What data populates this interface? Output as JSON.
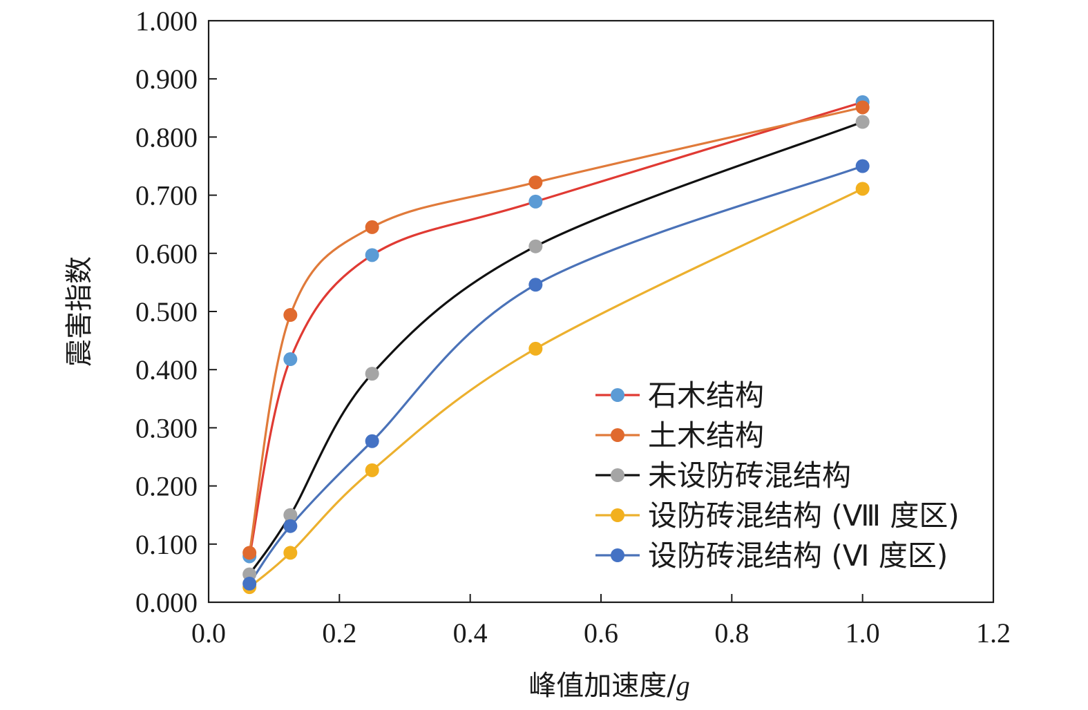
{
  "chart_data": {
    "type": "line",
    "title": "",
    "xlabel": "峰值加速度/",
    "xlabel_italic": "g",
    "ylabel": "震害指数",
    "xlim": [
      0.0,
      1.2
    ],
    "ylim": [
      0.0,
      1.0
    ],
    "x_ticks": [
      "0.0",
      "0.2",
      "0.4",
      "0.6",
      "0.8",
      "1.0",
      "1.2"
    ],
    "y_ticks": [
      "0.000",
      "0.100",
      "0.200",
      "0.300",
      "0.400",
      "0.500",
      "0.600",
      "0.700",
      "0.800",
      "0.900",
      "1.000"
    ],
    "x": [
      0.0625,
      0.125,
      0.25,
      0.5,
      1.0
    ],
    "grid": false,
    "legend_position": "lower-right",
    "series": [
      {
        "name": "石木结构",
        "line_color": "#e03a33",
        "marker_color": "#5b9bd5",
        "values": [
          0.079,
          0.418,
          0.597,
          0.689,
          0.86
        ]
      },
      {
        "name": "土木结构",
        "line_color": "#e07a3a",
        "marker_color": "#e06a2e",
        "values": [
          0.085,
          0.494,
          0.645,
          0.722,
          0.851
        ]
      },
      {
        "name": "未设防砖混结构",
        "line_color": "#111111",
        "marker_color": "#a5a5a5",
        "values": [
          0.048,
          0.15,
          0.393,
          0.612,
          0.826
        ]
      },
      {
        "name": "设防砖混结构 (Ⅷ 度区)",
        "line_color": "#ecb02e",
        "marker_color": "#f2b01e",
        "values": [
          0.026,
          0.085,
          0.227,
          0.436,
          0.711
        ]
      },
      {
        "name": "设防砖混结构 (Ⅵ 度区)",
        "line_color": "#4a72b8",
        "marker_color": "#4472c4",
        "values": [
          0.032,
          0.131,
          0.277,
          0.546,
          0.75
        ]
      }
    ]
  }
}
